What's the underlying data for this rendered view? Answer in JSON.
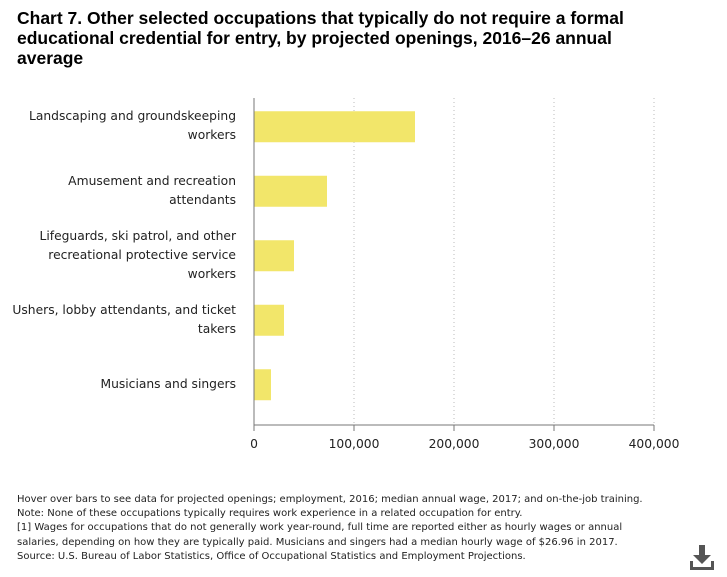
{
  "chart_data": {
    "type": "bar",
    "orientation": "horizontal",
    "title_lines": [
      "Chart 7. Other selected occupations that typically do not require a formal",
      "educational credential for entry, by projected openings, 2016–26 annual",
      "average"
    ],
    "categories": [
      [
        "Landscaping and groundskeeping",
        "workers"
      ],
      [
        "Amusement and recreation",
        "attendants"
      ],
      [
        "Lifeguards, ski patrol, and other",
        "recreational protective service",
        "workers"
      ],
      [
        "Ushers, lobby attendants, and ticket",
        "takers"
      ],
      [
        "Musicians and singers"
      ]
    ],
    "values": [
      161000,
      73000,
      40000,
      30000,
      17000
    ],
    "xlim": [
      0,
      400000
    ],
    "xticks": [
      0,
      100000,
      200000,
      300000,
      400000
    ],
    "xtick_labels": [
      "0",
      "100,000",
      "200,000",
      "300,000",
      "400,000"
    ],
    "bar_color": "#f2e66a",
    "axis_color": "#777777",
    "grid_color": "#bbbbbb",
    "grid": "dotted"
  },
  "notes": [
    "Hover over bars to see data for projected openings; employment, 2016; median annual wage, 2017; and on-the-job training.",
    "Note: None of these occupations typically requires work experience in a related occupation for entry.",
    "[1] Wages for occupations that do not generally work year-round, full time are reported either as hourly wages or annual",
    "salaries, depending on how they are typically paid. Musicians and singers had a median hourly wage of $26.96 in 2017.",
    "Source: U.S. Bureau of Labor Statistics, Office of Occupational Statistics and Employment Projections."
  ],
  "download": {
    "icon": "download-icon",
    "color": "#555555"
  }
}
